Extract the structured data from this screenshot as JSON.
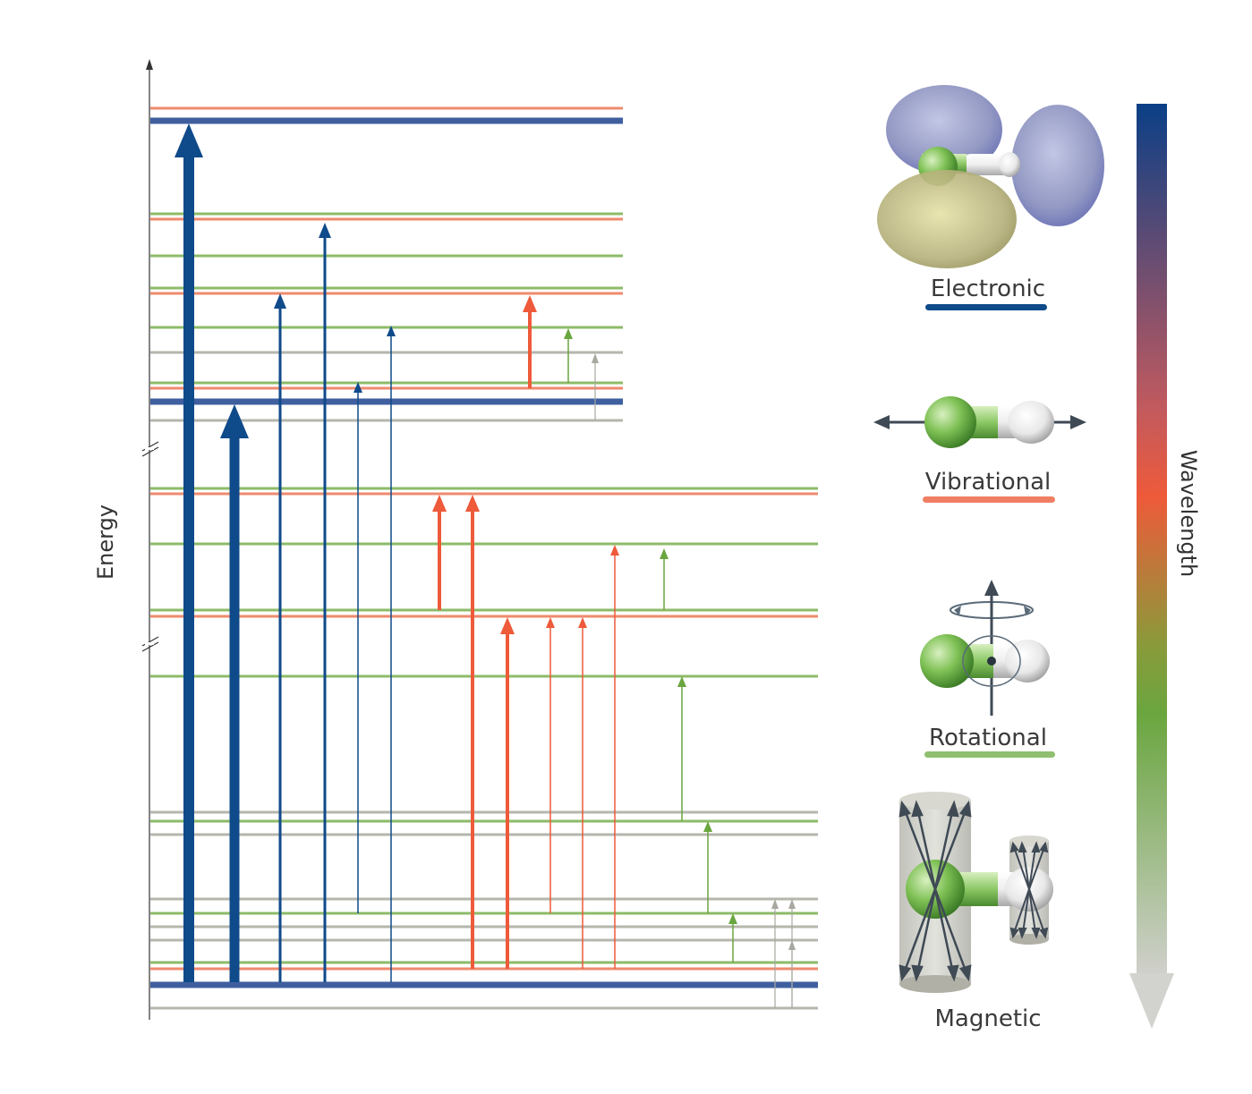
{
  "axis": {
    "energy_label": "Energy",
    "wavelength_label": "Wavelength"
  },
  "legend": {
    "electronic": {
      "label": "Electronic",
      "color": "#0f4a8a"
    },
    "vibrational": {
      "label": "Vibrational",
      "color": "#ef7f62"
    },
    "rotational": {
      "label": "Rotational",
      "color": "#8fbf6f"
    },
    "magnetic": {
      "label": "Magnetic",
      "color": "#b0b0a8"
    }
  },
  "colors": {
    "electronic_level": "#3f5f9f",
    "vibrational_level": "#ef8a6e",
    "rotational_level": "#8dbb68",
    "magnetic_level": "#b6b6ad",
    "electronic_arrow": "#0f4a8a",
    "vibrational_arrow": "#ee5a3a",
    "rotational_arrow": "#6aa63f",
    "magnetic_arrow": "#a8a8a0"
  }
}
